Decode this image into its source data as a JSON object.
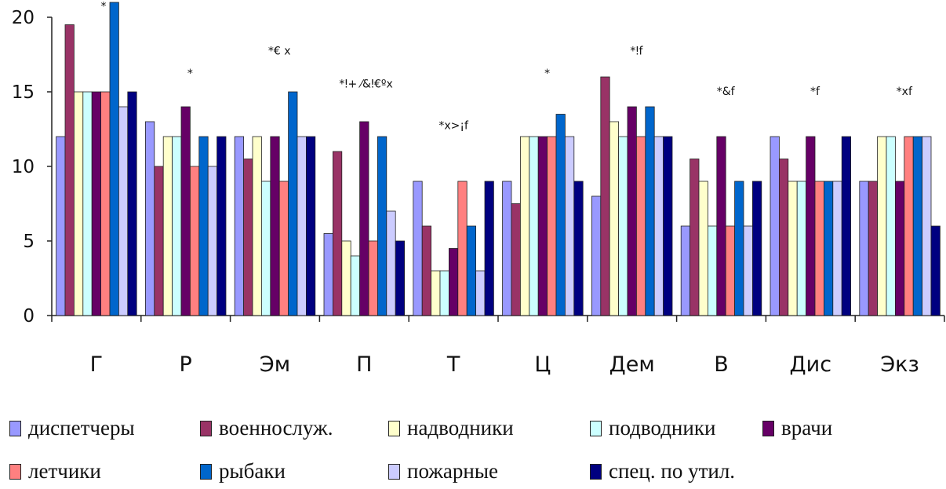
{
  "chart_data": {
    "type": "bar",
    "ylim": [
      0,
      20
    ],
    "yticks": [
      "0",
      "5",
      "10",
      "15",
      "20"
    ],
    "categories": [
      "Г",
      "Р",
      "Эм",
      "П",
      "Т",
      "Ц",
      "Дем",
      "В",
      "Дис",
      "Экз"
    ],
    "annotations": [
      "*",
      "*",
      "*€ x",
      "*ǃ+ ⁄&ǃ€ºx",
      "*x>¡f",
      "*",
      "*ǃf",
      "*&f",
      "*f",
      "*xf"
    ],
    "legend_position": "bottom",
    "series": [
      {
        "name": "диспетчеры",
        "color": "#9999FF",
        "values": [
          12,
          13,
          12,
          5.5,
          9,
          9,
          8,
          6,
          12,
          9
        ]
      },
      {
        "name": "военнослуж.",
        "color": "#993366",
        "values": [
          19.5,
          10,
          10.5,
          11,
          6,
          7.5,
          16,
          10.5,
          10.5,
          9
        ]
      },
      {
        "name": "надводники",
        "color": "#FFFFCC",
        "values": [
          15,
          12,
          12,
          5,
          3,
          12,
          13,
          9,
          9,
          12
        ]
      },
      {
        "name": "подводники",
        "color": "#CCFFFF",
        "values": [
          15,
          12,
          9,
          4,
          3,
          12,
          12,
          6,
          9,
          12
        ]
      },
      {
        "name": "врачи",
        "color": "#660066",
        "values": [
          15,
          14,
          12,
          13,
          4.5,
          12,
          14,
          12,
          12,
          9
        ]
      },
      {
        "name": "летчики",
        "color": "#FF8080",
        "values": [
          15,
          10,
          9,
          5,
          9,
          12,
          12,
          6,
          9,
          12
        ]
      },
      {
        "name": "рыбаки",
        "color": "#0066CC",
        "values": [
          21,
          12,
          15,
          12,
          6,
          13.5,
          14,
          9,
          9,
          12
        ]
      },
      {
        "name": "пожарные",
        "color": "#CCCCFF",
        "values": [
          14,
          10,
          12,
          7,
          3,
          12,
          12,
          6,
          9,
          12
        ]
      },
      {
        "name": "спец. по утил.",
        "color": "#000080",
        "values": [
          15,
          12,
          12,
          5,
          9,
          9,
          12,
          9,
          12,
          6
        ]
      }
    ]
  }
}
